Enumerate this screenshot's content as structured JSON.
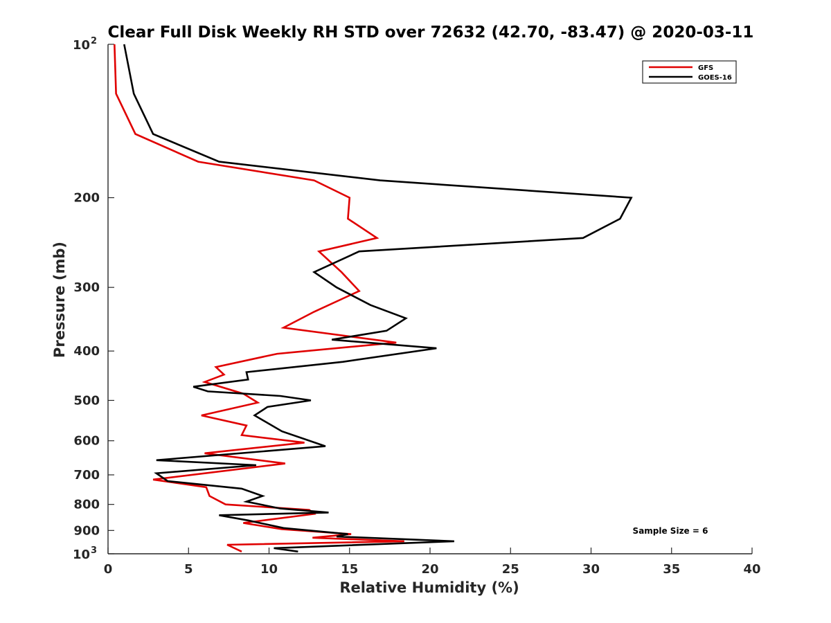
{
  "chart_data": {
    "type": "line",
    "title": "Clear Full Disk Weekly RH STD over 72632 (42.70, -83.47) @ 2020-03-11",
    "xlabel": "Relative Humidity (%)",
    "ylabel": "Pressure (mb)",
    "xlim": [
      0,
      40
    ],
    "ylim": [
      100,
      1000
    ],
    "yscale": "log",
    "y_reversed": true,
    "grid": false,
    "legend_position": "top-right",
    "x_ticks": [
      "0",
      "5",
      "10",
      "15",
      "20",
      "25",
      "30",
      "35",
      "40"
    ],
    "y_ticks": [
      {
        "value": 100,
        "base": "10",
        "exp": "2"
      },
      {
        "value": 200,
        "label": "200"
      },
      {
        "value": 300,
        "label": "300"
      },
      {
        "value": 400,
        "label": "400"
      },
      {
        "value": 500,
        "label": "500"
      },
      {
        "value": 600,
        "label": "600"
      },
      {
        "value": 700,
        "label": "700"
      },
      {
        "value": 800,
        "label": "800"
      },
      {
        "value": 900,
        "label": "900"
      },
      {
        "value": 1000,
        "base": "10",
        "exp": "3"
      }
    ],
    "annotation": "Sample Size = 6",
    "series": [
      {
        "name": "GFS",
        "color": "#e00000",
        "x": [
          0.4,
          0.5,
          1.7,
          5.6,
          12.8,
          15.0,
          14.9,
          16.7,
          13.1,
          14.5,
          15.6,
          12.8,
          10.9,
          17.9,
          10.5,
          6.7,
          7.2,
          6.0,
          8.4,
          9.3,
          5.8,
          8.6,
          8.3,
          12.2,
          6.0,
          11.0,
          2.8,
          6.1,
          6.3,
          7.3,
          12.5,
          12.8,
          8.4,
          10.8,
          15.1,
          12.7,
          18.4,
          7.4,
          8.3
        ],
        "y": [
          100,
          125,
          150,
          170,
          185,
          200,
          220,
          240,
          255,
          280,
          305,
          335,
          360,
          385,
          405,
          430,
          445,
          460,
          485,
          505,
          535,
          560,
          585,
          605,
          635,
          665,
          715,
          740,
          770,
          800,
          820,
          835,
          870,
          895,
          915,
          930,
          945,
          960,
          990
        ]
      },
      {
        "name": "GOES-16",
        "color": "#000000",
        "x": [
          1.0,
          1.6,
          2.8,
          6.9,
          16.9,
          32.5,
          31.8,
          29.5,
          15.6,
          12.8,
          14.2,
          16.3,
          18.5,
          17.3,
          13.9,
          20.4,
          14.6,
          8.6,
          8.7,
          5.3,
          6.2,
          10.7,
          12.6,
          9.9,
          9.1,
          10.8,
          13.5,
          3.0,
          9.2,
          3.0,
          3.7,
          8.3,
          9.6,
          8.6,
          10.7,
          13.7,
          6.9,
          8.7,
          10.9,
          14.9,
          14.2,
          21.5,
          10.3,
          11.8
        ],
        "y": [
          100,
          125,
          150,
          170,
          185,
          200,
          220,
          240,
          255,
          280,
          300,
          325,
          345,
          365,
          380,
          395,
          420,
          440,
          455,
          470,
          480,
          490,
          500,
          515,
          535,
          575,
          615,
          655,
          670,
          695,
          720,
          745,
          770,
          790,
          815,
          830,
          840,
          860,
          890,
          915,
          925,
          945,
          975,
          990
        ]
      }
    ]
  }
}
